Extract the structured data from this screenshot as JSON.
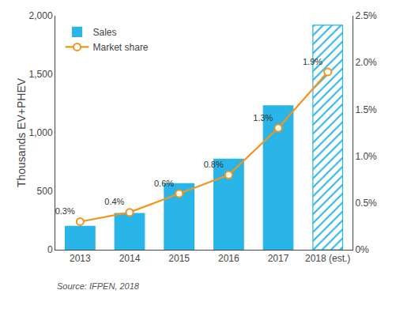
{
  "chart_data": {
    "type": "bar",
    "categories": [
      "2013",
      "2014",
      "2015",
      "2016",
      "2017",
      "2018 (est.)"
    ],
    "series": [
      {
        "name": "Sales",
        "type": "bar",
        "color": "#29B5E8",
        "values": [
          200,
          310,
          565,
          775,
          1230,
          1920
        ]
      },
      {
        "name": "Market share",
        "type": "line",
        "axis": "y2",
        "color": "#F4941F",
        "marker": "circle",
        "values": [
          0.3,
          0.4,
          0.6,
          0.8,
          1.3,
          1.9
        ],
        "value_labels": [
          "0.3%",
          "0.4%",
          "0.6%",
          "0.8%",
          "1.3%",
          "1.9%"
        ],
        "data_labels": true
      }
    ],
    "ylabel": "Thousands EV+PHEV",
    "ylim": [
      0,
      2000
    ],
    "yticks": [
      0,
      500,
      {
        "value": 1000,
        "label": "1,000"
      },
      {
        "value": 1500,
        "label": "1,500"
      },
      {
        "value": 2000,
        "label": "2,000"
      }
    ],
    "y2lim": [
      0,
      2.5
    ],
    "y2ticks": [
      {
        "value": 0.0,
        "label": "0%"
      },
      {
        "value": 0.5,
        "label": "0.5%"
      },
      {
        "value": 1.0,
        "label": "1.0%"
      },
      {
        "value": 1.5,
        "label": "1.5%"
      },
      {
        "value": 2.0,
        "label": "2.0%"
      },
      {
        "value": 2.5,
        "label": "2.5%"
      }
    ],
    "annotations": [
      "Source: IFPEN, 2018"
    ],
    "legend": "upper left",
    "grid": false
  }
}
